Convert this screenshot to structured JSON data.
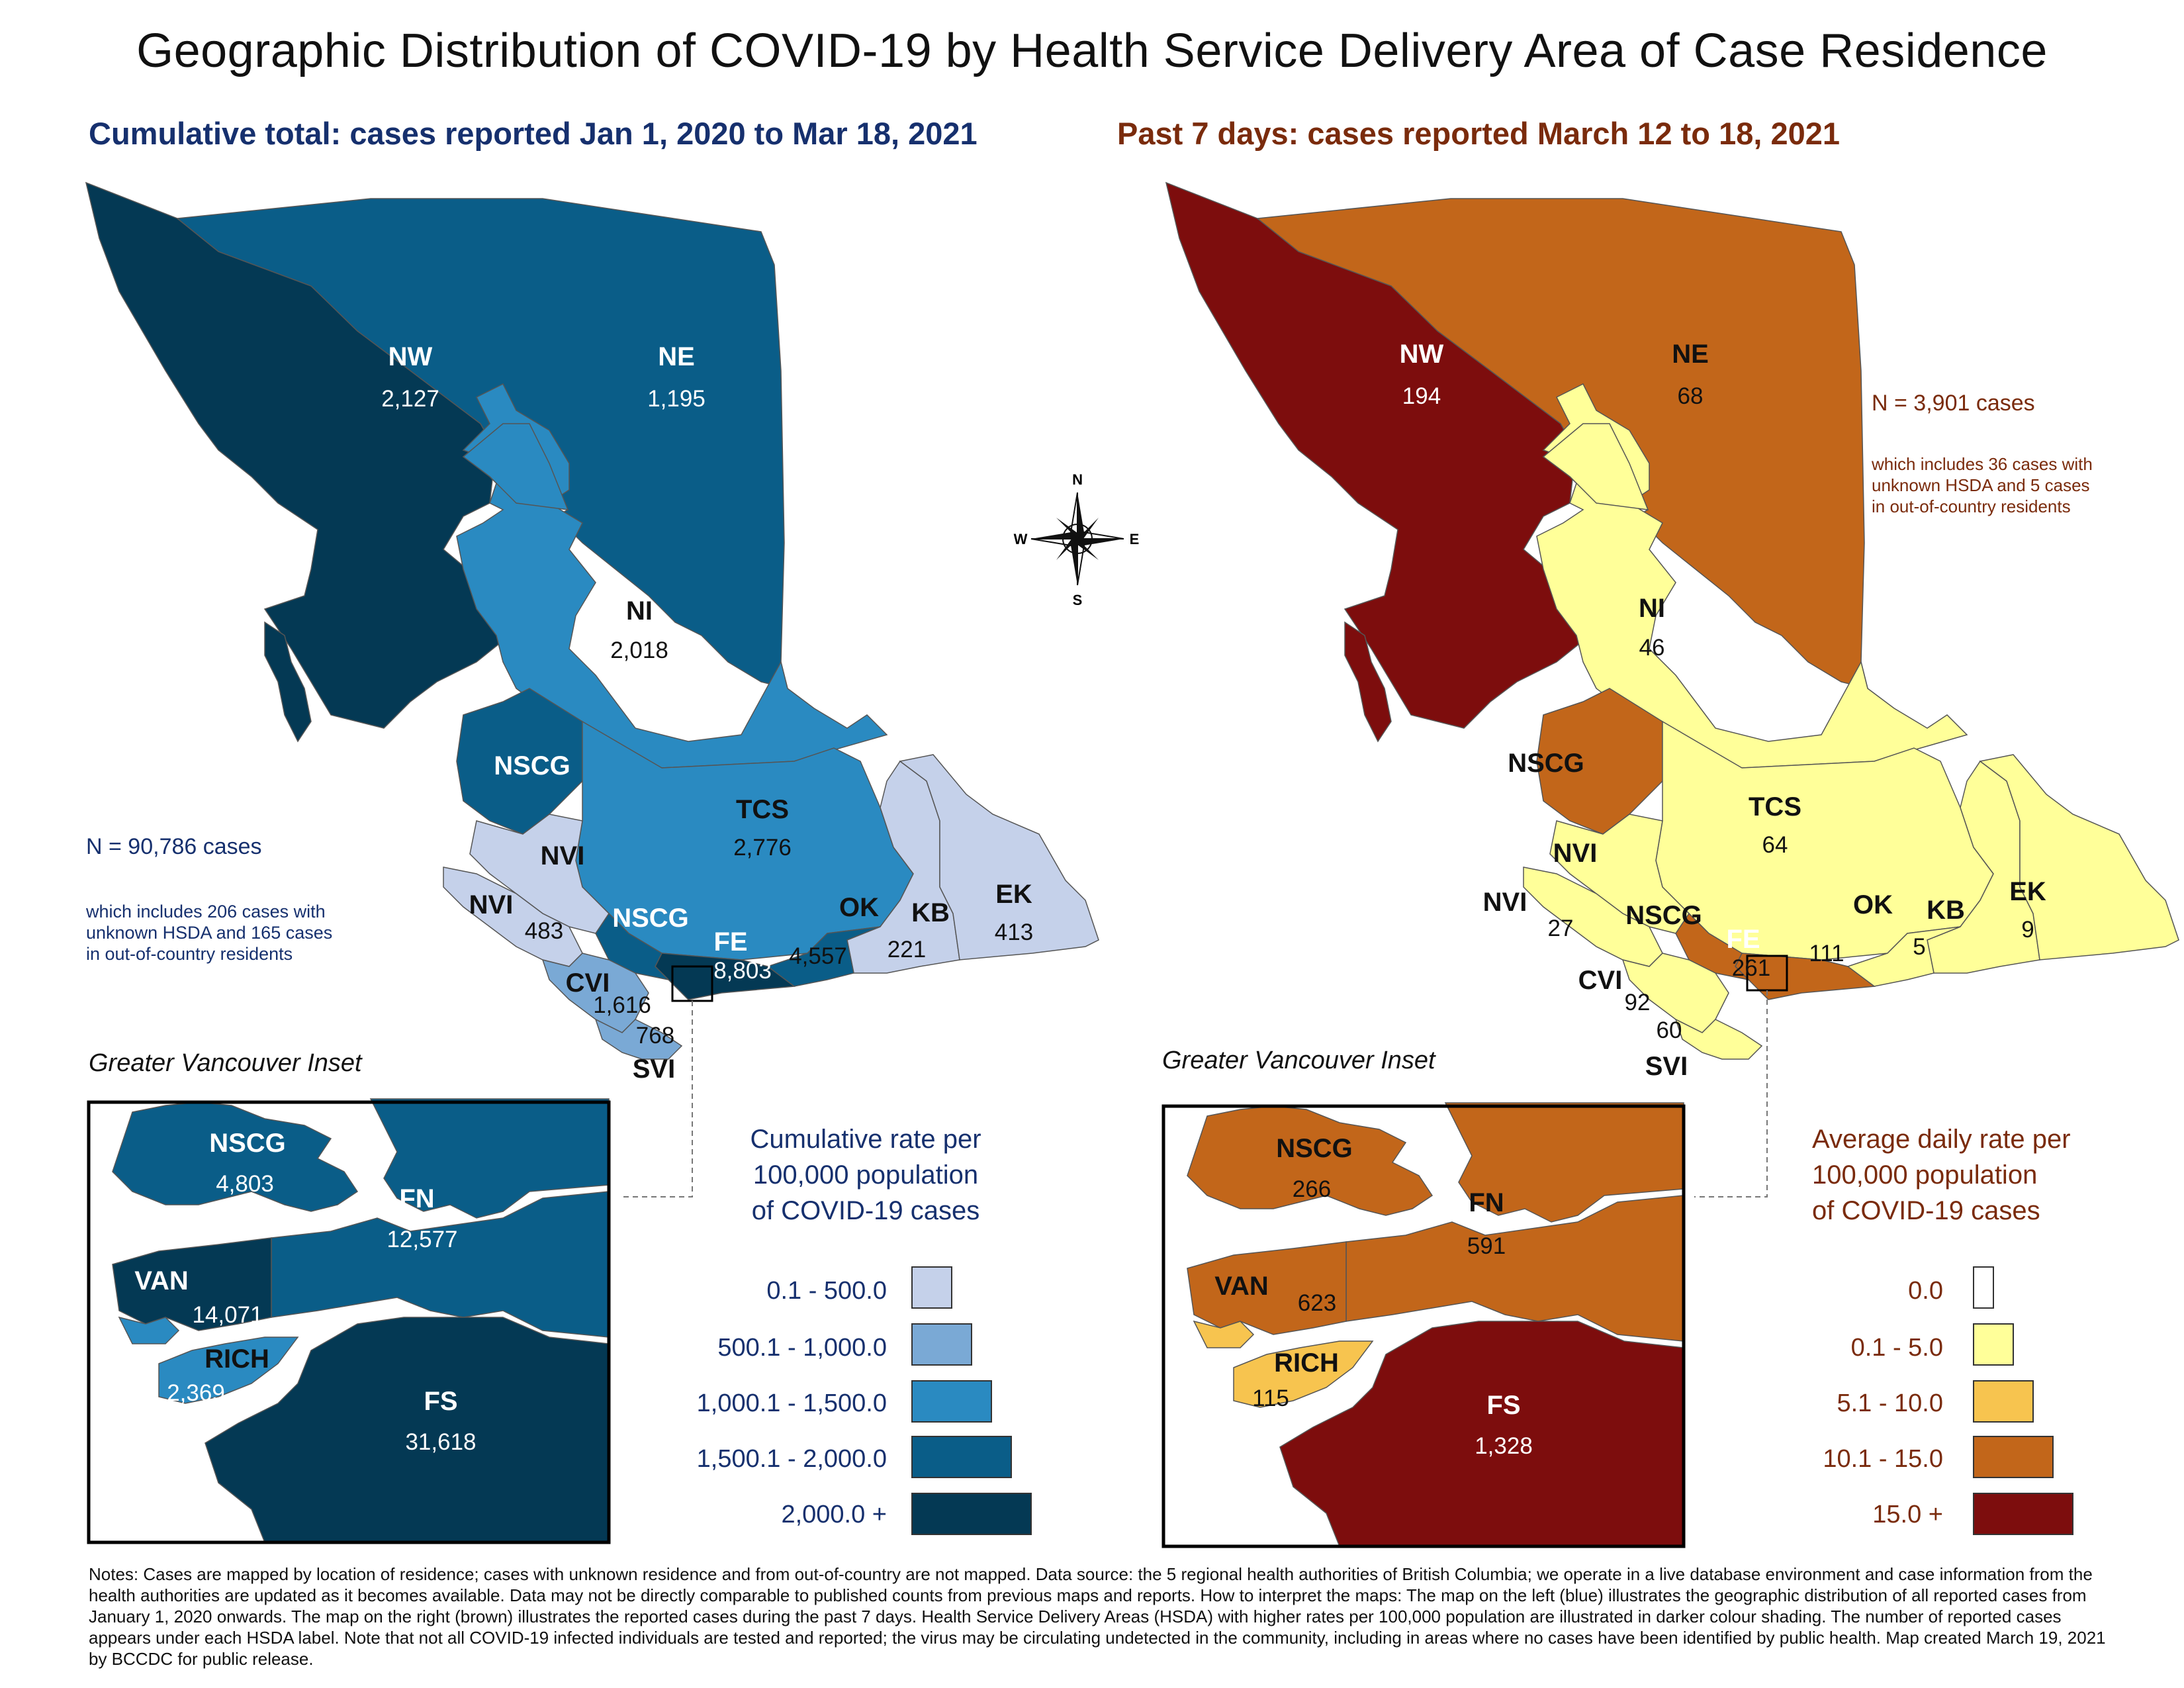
{
  "title": "Geographic Distribution of COVID-19 by Health Service Delivery Area of Case Residence",
  "subtitle_left": "Cumulative total: cases reported Jan 1, 2020 to Mar 18, 2021",
  "subtitle_right": "Past 7 days: cases reported March 12 to 18, 2021",
  "compass": {
    "n": "N",
    "s": "S",
    "e": "E",
    "w": "W",
    "icon": "compass-rose-icon"
  },
  "left_map": {
    "colors": {
      "c1": "#c5d1ea",
      "c2": "#7aa9d5",
      "c3": "#2a8ac1",
      "c4": "#0a5d88",
      "c5": "#043954"
    },
    "n_total": "N = 90,786 cases",
    "n_note_1": "which includes 206 cases with",
    "n_note_2": "unknown HSDA and 165 cases",
    "n_note_3": "in out-of-country residents",
    "regions": {
      "NW": {
        "label": "NW",
        "value": "2,127"
      },
      "NE": {
        "label": "NE",
        "value": "1,195"
      },
      "NI": {
        "label": "NI",
        "value": "2,018"
      },
      "NSCG": {
        "label": "NSCG",
        "value": ""
      },
      "NSCG_S": {
        "label": "NSCG",
        "value": ""
      },
      "TCS": {
        "label": "TCS",
        "value": "2,776"
      },
      "NVI": {
        "label": "NVI",
        "value": ""
      },
      "NVI_W": {
        "label": "NVI",
        "value": "483"
      },
      "OK": {
        "label": "OK",
        "value": "4,557"
      },
      "KB": {
        "label": "KB",
        "value": "221"
      },
      "EK": {
        "label": "EK",
        "value": "413"
      },
      "FE": {
        "label": "FE",
        "value": "8,803"
      },
      "CVI": {
        "label": "CVI",
        "value": "1,616"
      },
      "SVI": {
        "label": "SVI",
        "value": "768"
      }
    },
    "inset_title": "Greater Vancouver Inset",
    "inset": {
      "NSCG": {
        "label": "NSCG",
        "value": "4,803"
      },
      "FN": {
        "label": "FN",
        "value": "12,577"
      },
      "VAN": {
        "label": "VAN",
        "value": "14,071"
      },
      "RICH": {
        "label": "RICH",
        "value": "2,369"
      },
      "FS": {
        "label": "FS",
        "value": "31,618"
      }
    },
    "legend": {
      "title_1": "Cumulative rate per",
      "title_2": "100,000 population",
      "title_3": "of COVID-19 cases",
      "items": [
        "0.1 - 500.0",
        "500.1 - 1,000.0",
        "1,000.1 - 1,500.0",
        "1,500.1 - 2,000.0",
        "2,000.0 +"
      ]
    }
  },
  "right_map": {
    "colors": {
      "c0": "#ffffff",
      "c1": "#ffff99",
      "c2": "#f7c44f",
      "c3": "#c2661a",
      "c4": "#7d0d0d"
    },
    "n_total": "N = 3,901 cases",
    "n_note_1": "which includes 36 cases with",
    "n_note_2": "unknown HSDA and 5 cases",
    "n_note_3": "in out-of-country residents",
    "regions": {
      "NW": {
        "label": "NW",
        "value": "194"
      },
      "NE": {
        "label": "NE",
        "value": "68"
      },
      "NI": {
        "label": "NI",
        "value": "46"
      },
      "NSCG": {
        "label": "NSCG",
        "value": ""
      },
      "NSCG_S": {
        "label": "NSCG",
        "value": ""
      },
      "TCS": {
        "label": "TCS",
        "value": "64"
      },
      "NVI": {
        "label": "NVI",
        "value": ""
      },
      "NVI_W": {
        "label": "NVI",
        "value": "27"
      },
      "OK": {
        "label": "OK",
        "value": "111"
      },
      "KB": {
        "label": "KB",
        "value": "5"
      },
      "EK": {
        "label": "EK",
        "value": "9"
      },
      "FE": {
        "label": "FE",
        "value": "261"
      },
      "CVI": {
        "label": "CVI",
        "value": "92"
      },
      "SVI": {
        "label": "SVI",
        "value": "60"
      }
    },
    "inset_title": "Greater Vancouver Inset",
    "inset": {
      "NSCG": {
        "label": "NSCG",
        "value": "266"
      },
      "FN": {
        "label": "FN",
        "value": "591"
      },
      "VAN": {
        "label": "VAN",
        "value": "623"
      },
      "RICH": {
        "label": "RICH",
        "value": "115"
      },
      "FS": {
        "label": "FS",
        "value": "1,328"
      }
    },
    "legend": {
      "title_1": "Average daily rate per",
      "title_2": "100,000 population",
      "title_3": "of COVID-19 cases",
      "items": [
        "0.0",
        "0.1 - 5.0",
        "5.1 - 10.0",
        "10.1 - 15.0",
        "15.0 +"
      ]
    }
  },
  "notes": "Notes: Cases are mapped by location of residence; cases with unknown residence and from out-of-country are not mapped. Data source: the 5 regional health authorities of British Columbia; we operate in a live database environment and case information from the health authorities are updated as it becomes available. Data may not be directly comparable to published counts from previous maps and reports. How to interpret the maps: The map on the left (blue) illustrates the geographic distribution of all reported cases from January 1, 2020 onwards. The map on the right (brown) illustrates the reported cases during the past 7 days. Health Service Delivery Areas (HSDA) with higher rates per 100,000 population are illustrated in darker colour shading. The number of reported cases appears under each HSDA label. Note that not all COVID-19 infected individuals are tested and reported; the virus may be circulating undetected in the community, including in areas where no cases have been identified by public health. Map created March 19, 2021 by BCCDC for public release."
}
